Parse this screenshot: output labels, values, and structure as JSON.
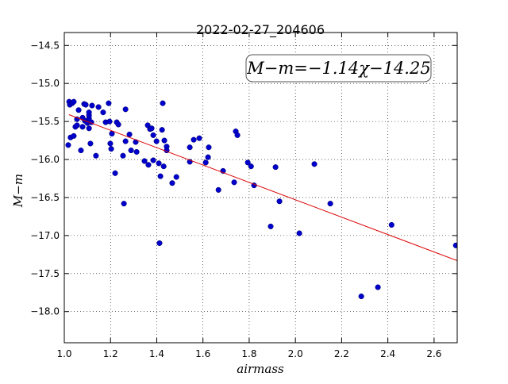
{
  "chart_data": {
    "type": "scatter",
    "title": "2022-02-27_204606",
    "x_label": "airmass",
    "y_label": "M−m",
    "annotation": "M−m=−1.14χ−14.25",
    "xlim": [
      1.0,
      2.7
    ],
    "ylim": [
      -18.41,
      -14.33
    ],
    "xticks": [
      {
        "value": 1.0,
        "label": "1.0"
      },
      {
        "value": 1.2,
        "label": "1.2"
      },
      {
        "value": 1.4,
        "label": "1.4"
      },
      {
        "value": 1.6,
        "label": "1.6"
      },
      {
        "value": 1.8,
        "label": "1.8"
      },
      {
        "value": 2.0,
        "label": "2.0"
      },
      {
        "value": 2.2,
        "label": "2.2"
      },
      {
        "value": 2.4,
        "label": "2.4"
      },
      {
        "value": 2.6,
        "label": "2.6"
      }
    ],
    "yticks": [
      {
        "value": -14.5,
        "label": "−14.5"
      },
      {
        "value": -15.0,
        "label": "−15.0"
      },
      {
        "value": -15.5,
        "label": "−15.5"
      },
      {
        "value": -16.0,
        "label": "−16.0"
      },
      {
        "value": -16.5,
        "label": "−16.5"
      },
      {
        "value": -17.0,
        "label": "−17.0"
      },
      {
        "value": -17.5,
        "label": "−17.5"
      },
      {
        "value": -18.0,
        "label": "−18.0"
      }
    ],
    "grid": true,
    "series": [
      {
        "color": "#0000cc",
        "x": [
          1.021,
          1.024,
          1.034,
          1.041,
          1.017,
          1.027,
          1.041,
          1.048,
          1.055,
          1.055,
          1.062,
          1.072,
          1.079,
          1.079,
          1.086,
          1.089,
          1.093,
          1.1,
          1.107,
          1.107,
          1.107,
          1.107,
          1.113,
          1.117,
          1.12,
          1.137,
          1.148,
          1.168,
          1.179,
          1.192,
          1.196,
          1.199,
          1.203,
          1.206,
          1.22,
          1.227,
          1.234,
          1.254,
          1.258,
          1.265,
          1.265,
          1.282,
          1.289,
          1.309,
          1.313,
          1.347,
          1.361,
          1.364,
          1.371,
          1.378,
          1.385,
          1.385,
          1.399,
          1.409,
          1.412,
          1.416,
          1.423,
          1.426,
          1.43,
          1.433,
          1.443,
          1.443,
          1.467,
          1.485,
          1.543,
          1.543,
          1.56,
          1.584,
          1.612,
          1.622,
          1.625,
          1.667,
          1.687,
          1.735,
          1.742,
          1.749,
          1.794,
          1.808,
          1.821,
          1.893,
          1.914,
          1.931,
          2.017,
          2.082,
          2.151,
          2.285,
          2.357,
          2.416,
          2.694
        ],
        "values": [
          -15.24,
          -15.28,
          -15.26,
          -15.24,
          -15.81,
          -15.71,
          -15.69,
          -15.57,
          -15.55,
          -15.47,
          -15.35,
          -15.88,
          -15.45,
          -15.57,
          -15.27,
          -15.49,
          -15.28,
          -15.52,
          -15.46,
          -15.59,
          -15.42,
          -15.38,
          -15.79,
          -15.51,
          -15.29,
          -15.95,
          -15.31,
          -15.38,
          -15.51,
          -15.26,
          -15.5,
          -15.79,
          -15.86,
          -15.66,
          -16.18,
          -15.51,
          -15.54,
          -15.95,
          -16.58,
          -15.34,
          -15.76,
          -15.67,
          -15.88,
          -15.77,
          -15.9,
          -16.02,
          -15.55,
          -16.07,
          -15.6,
          -15.59,
          -15.68,
          -16.01,
          -15.76,
          -16.05,
          -17.1,
          -16.22,
          -15.61,
          -15.26,
          -16.09,
          -15.75,
          -15.83,
          -15.88,
          -16.31,
          -16.23,
          -15.84,
          -16.03,
          -15.74,
          -15.72,
          -16.04,
          -15.97,
          -15.84,
          -16.4,
          -16.15,
          -16.3,
          -15.63,
          -15.68,
          -16.04,
          -16.09,
          -16.34,
          -16.88,
          -16.1,
          -16.55,
          -16.97,
          -16.06,
          -16.58,
          -17.8,
          -17.68,
          -16.86,
          -17.13
        ]
      },
      {
        "type": "line",
        "color": "#dd0000",
        "x": [
          1.02,
          2.7
        ],
        "values": [
          -15.41,
          -17.33
        ]
      }
    ]
  }
}
